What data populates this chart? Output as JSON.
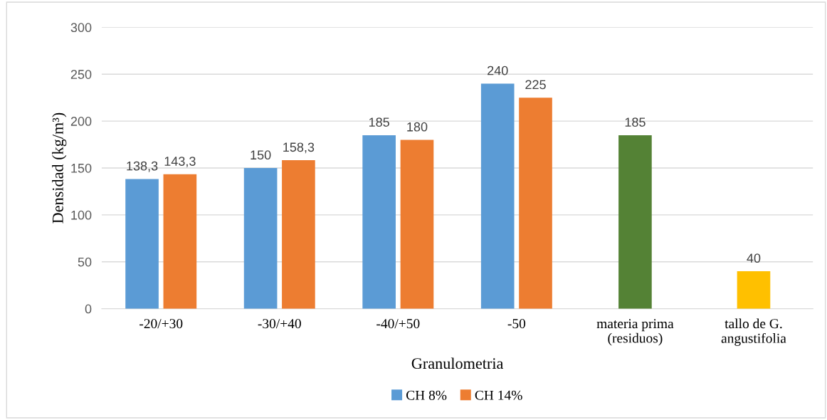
{
  "chart_data": {
    "type": "bar",
    "xlabel": "Granulometria",
    "ylabel": "Densidad (kg/m³)",
    "categories": [
      "-20/+30",
      "-30/+40",
      "-40/+50",
      "-50",
      "materia prima\n(residuos)",
      "tallo de G.\nangustifolia"
    ],
    "series": [
      {
        "name": "CH 8%",
        "color": "#5b9bd5",
        "values": [
          138.3,
          150,
          185,
          240,
          null,
          null
        ],
        "value_labels": [
          "138,3",
          "150",
          "185",
          "240",
          null,
          null
        ]
      },
      {
        "name": "CH 14%",
        "color": "#ed7d31",
        "values": [
          143.3,
          158.3,
          180,
          225,
          null,
          null
        ],
        "value_labels": [
          "143,3",
          "158,3",
          "180",
          "225",
          null,
          null
        ]
      },
      {
        "colors": [
          "#548235",
          "#548235",
          "#548235",
          "#548235",
          "#548235",
          "#ffc000"
        ],
        "values": [
          null,
          null,
          null,
          null,
          185,
          40
        ],
        "value_labels": [
          null,
          null,
          null,
          null,
          "185",
          "40"
        ]
      }
    ],
    "ylim": [
      0,
      300
    ],
    "yticks": [
      0,
      50,
      100,
      150,
      200,
      250,
      300
    ],
    "grid": "y",
    "legend": "bottom"
  }
}
